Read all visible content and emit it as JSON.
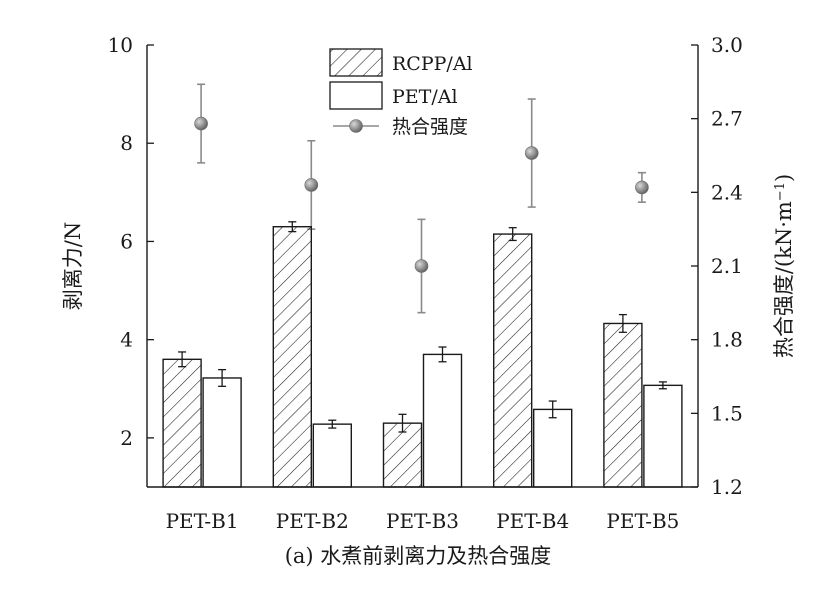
{
  "caption": "(a) 水煮前剥离力及热合强度",
  "chart_data": {
    "type": "bar",
    "categories": [
      "PET-B1",
      "PET-B2",
      "PET-B3",
      "PET-B4",
      "PET-B5"
    ],
    "ylabel": "剥离力/N",
    "ylim": [
      1,
      10
    ],
    "y_ticks": [
      2,
      4,
      6,
      8,
      10
    ],
    "y2label_prefix": "热合强度/(kN·m",
    "y2label_sup": "−1",
    "y2label_suffix": ")",
    "y2lim": [
      1.2,
      3.0
    ],
    "y2_ticks": [
      "1.2",
      "1.5",
      "1.8",
      "2.1",
      "2.4",
      "2.7",
      "3.0"
    ],
    "grid": false,
    "legend_position": "top-center",
    "series": [
      {
        "name": "RCPP/Al",
        "kind": "bar",
        "pattern": "hatch",
        "axis": "left",
        "values": [
          3.6,
          6.3,
          2.3,
          6.15,
          4.33
        ],
        "errors": [
          0.15,
          0.1,
          0.18,
          0.13,
          0.18
        ]
      },
      {
        "name": "PET/Al",
        "kind": "bar",
        "pattern": "empty",
        "axis": "left",
        "values": [
          3.22,
          2.28,
          3.7,
          2.58,
          3.07
        ],
        "errors": [
          0.17,
          0.08,
          0.15,
          0.17,
          0.07
        ]
      },
      {
        "name": "热合强度",
        "kind": "scatter",
        "color": "#8a8a8a",
        "axis": "right",
        "values": [
          2.68,
          2.43,
          2.1,
          2.56,
          2.42
        ],
        "errors": [
          0.16,
          0.18,
          0.19,
          0.22,
          0.06
        ]
      }
    ]
  }
}
